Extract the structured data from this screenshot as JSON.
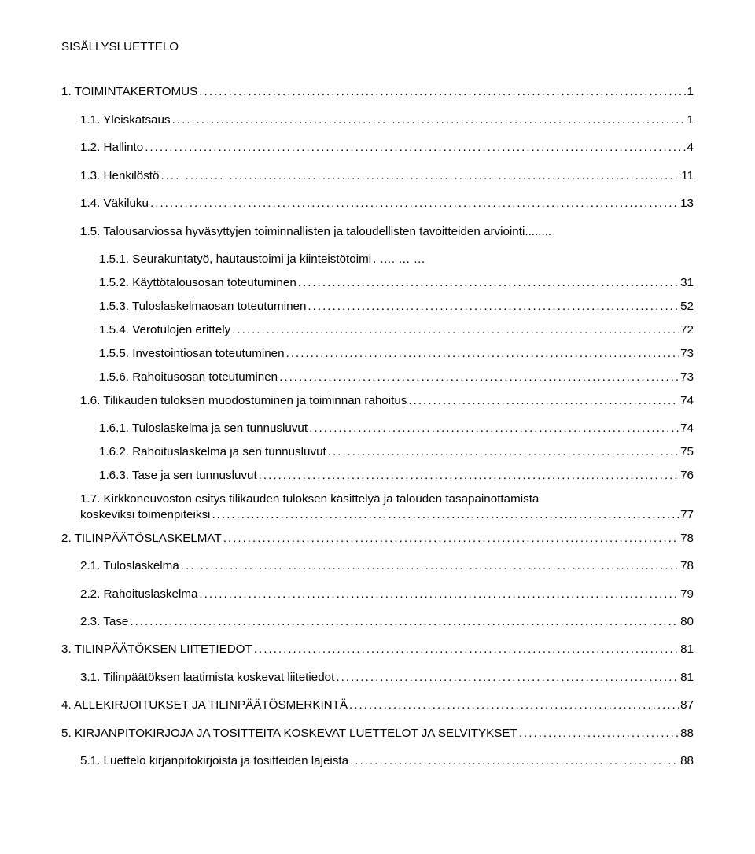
{
  "title": "SISÄLLYSLUETTELO",
  "entries": [
    {
      "level": 0,
      "label": "1. TOIMINTAKERTOMUS",
      "page": "1"
    },
    {
      "level": 1,
      "label": "1.1. Yleiskatsaus",
      "page": "1"
    },
    {
      "level": 1,
      "label": "1.2. Hallinto",
      "page": "4"
    },
    {
      "level": 1,
      "label": "1.3. Henkilöstö",
      "page": "11"
    },
    {
      "level": 1,
      "label": "1.4. Väkiluku",
      "page": "13"
    },
    {
      "level": 1,
      "label": "1.5. Talousarviossa hyväsyttyjen toiminnallisten ja taloudellisten tavoitteiden arviointi",
      "page": "",
      "nodots": true
    },
    {
      "level": 2,
      "label": "1.5.1. Seurakuntatyö, hautaustoimi ja kiinteistötoimi",
      "page": "",
      "nodots": true,
      "ellipsis": true
    },
    {
      "level": 2,
      "label": "1.5.2. Käyttötalousosan toteutuminen",
      "page": "31"
    },
    {
      "level": 2,
      "label": "1.5.3. Tuloslaskelmaosan toteutuminen",
      "page": "52"
    },
    {
      "level": 2,
      "label": "1.5.4. Verotulojen erittely",
      "page": "72"
    },
    {
      "level": 2,
      "label": "1.5.5. Investointiosan toteutuminen",
      "page": "73"
    },
    {
      "level": 2,
      "label": "1.5.6. Rahoitusosan toteutuminen",
      "page": "73"
    },
    {
      "level": 1,
      "label": "1.6. Tilikauden tuloksen muodostuminen ja toiminnan rahoitus",
      "page": "74"
    },
    {
      "level": 2,
      "label": "1.6.1. Tuloslaskelma ja sen tunnusluvut",
      "page": "74"
    },
    {
      "level": 2,
      "label": "1.6.2. Rahoituslaskelma ja sen tunnusluvut",
      "page": "75"
    },
    {
      "level": 2,
      "label": "1.6.3. Tase ja sen tunnusluvut",
      "page": "76"
    },
    {
      "level": 1,
      "wrap": true,
      "line1": "1.7. Kirkkoneuvoston esitys tilikauden tuloksen käsittelyä ja talouden tasapainottamista",
      "line2": "koskeviksi toimenpiteiksi",
      "page": "77"
    },
    {
      "level": 0,
      "label": "2. TILINPÄÄTÖSLASKELMAT",
      "page": "78"
    },
    {
      "level": 1,
      "label": "2.1. Tuloslaskelma",
      "page": "78"
    },
    {
      "level": 1,
      "label": "2.2. Rahoituslaskelma",
      "page": "79"
    },
    {
      "level": 1,
      "label": "2.3. Tase",
      "page": "80"
    },
    {
      "level": 0,
      "label": "3. TILINPÄÄTÖKSEN LIITETIEDOT",
      "page": "81"
    },
    {
      "level": 1,
      "label": "3.1. Tilinpäätöksen laatimista koskevat liitetiedot",
      "page": "81"
    },
    {
      "level": 0,
      "label": "4. ALLEKIRJOITUKSET JA TILINPÄÄTÖSMERKINTÄ",
      "page": "87"
    },
    {
      "level": 0,
      "label": "5. KIRJANPITOKIRJOJA JA TOSITTEITA KOSKEVAT LUETTELOT JA SELVITYKSET",
      "page": "88"
    },
    {
      "level": 1,
      "label": "5.1. Luettelo kirjanpitokirjoista ja tositteiden lajeista",
      "page": "88"
    }
  ]
}
